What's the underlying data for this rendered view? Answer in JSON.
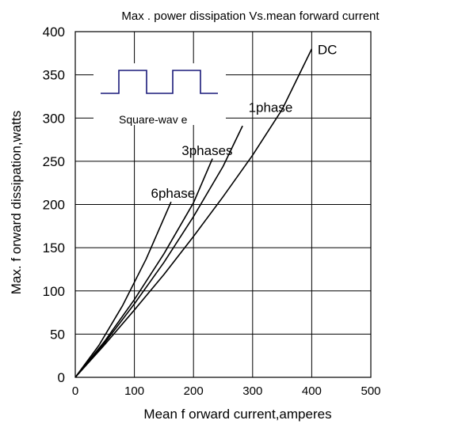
{
  "chart_data": {
    "type": "line",
    "title": "Max . power dissipation Vs.mean forward current",
    "xlabel": "Mean  f orward current,amperes",
    "ylabel": "Max. f orward dissipation,watts",
    "xlim": [
      0,
      500
    ],
    "ylim": [
      0,
      400
    ],
    "xticks": [
      "0",
      "100",
      "200",
      "300",
      "400",
      "500"
    ],
    "yticks": [
      "0",
      "50",
      "100",
      "150",
      "200",
      "250",
      "300",
      "350",
      "400"
    ],
    "grid": true,
    "legend": "none",
    "inset_label": "Square-wav e",
    "series": [
      {
        "name": "6phase",
        "x": [
          0,
          40,
          80,
          120,
          162
        ],
        "y": [
          0,
          37,
          83,
          137,
          203
        ]
      },
      {
        "name": "3phases",
        "x": [
          0,
          50,
          100,
          150,
          200,
          232
        ],
        "y": [
          0,
          42,
          90,
          143,
          202,
          253
        ]
      },
      {
        "name": "1phase",
        "x": [
          0,
          50,
          100,
          150,
          200,
          250,
          283
        ],
        "y": [
          0,
          40,
          85,
          133,
          186,
          244,
          291
        ]
      },
      {
        "name": "DC",
        "x": [
          0,
          50,
          100,
          150,
          200,
          250,
          300,
          350,
          400
        ],
        "y": [
          0,
          38,
          78,
          119,
          163,
          209,
          257,
          310,
          380
        ]
      }
    ],
    "series_labels": [
      {
        "text": "DC",
        "x": 410,
        "y": 374
      },
      {
        "text": "1phase",
        "x": 293,
        "y": 307
      },
      {
        "text": "3phases",
        "x": 180,
        "y": 257
      },
      {
        "text": "6phase",
        "x": 128,
        "y": 208
      }
    ],
    "line_color": "#000000",
    "grid_color": "#000000",
    "inset_color": "#1a1a7a"
  }
}
